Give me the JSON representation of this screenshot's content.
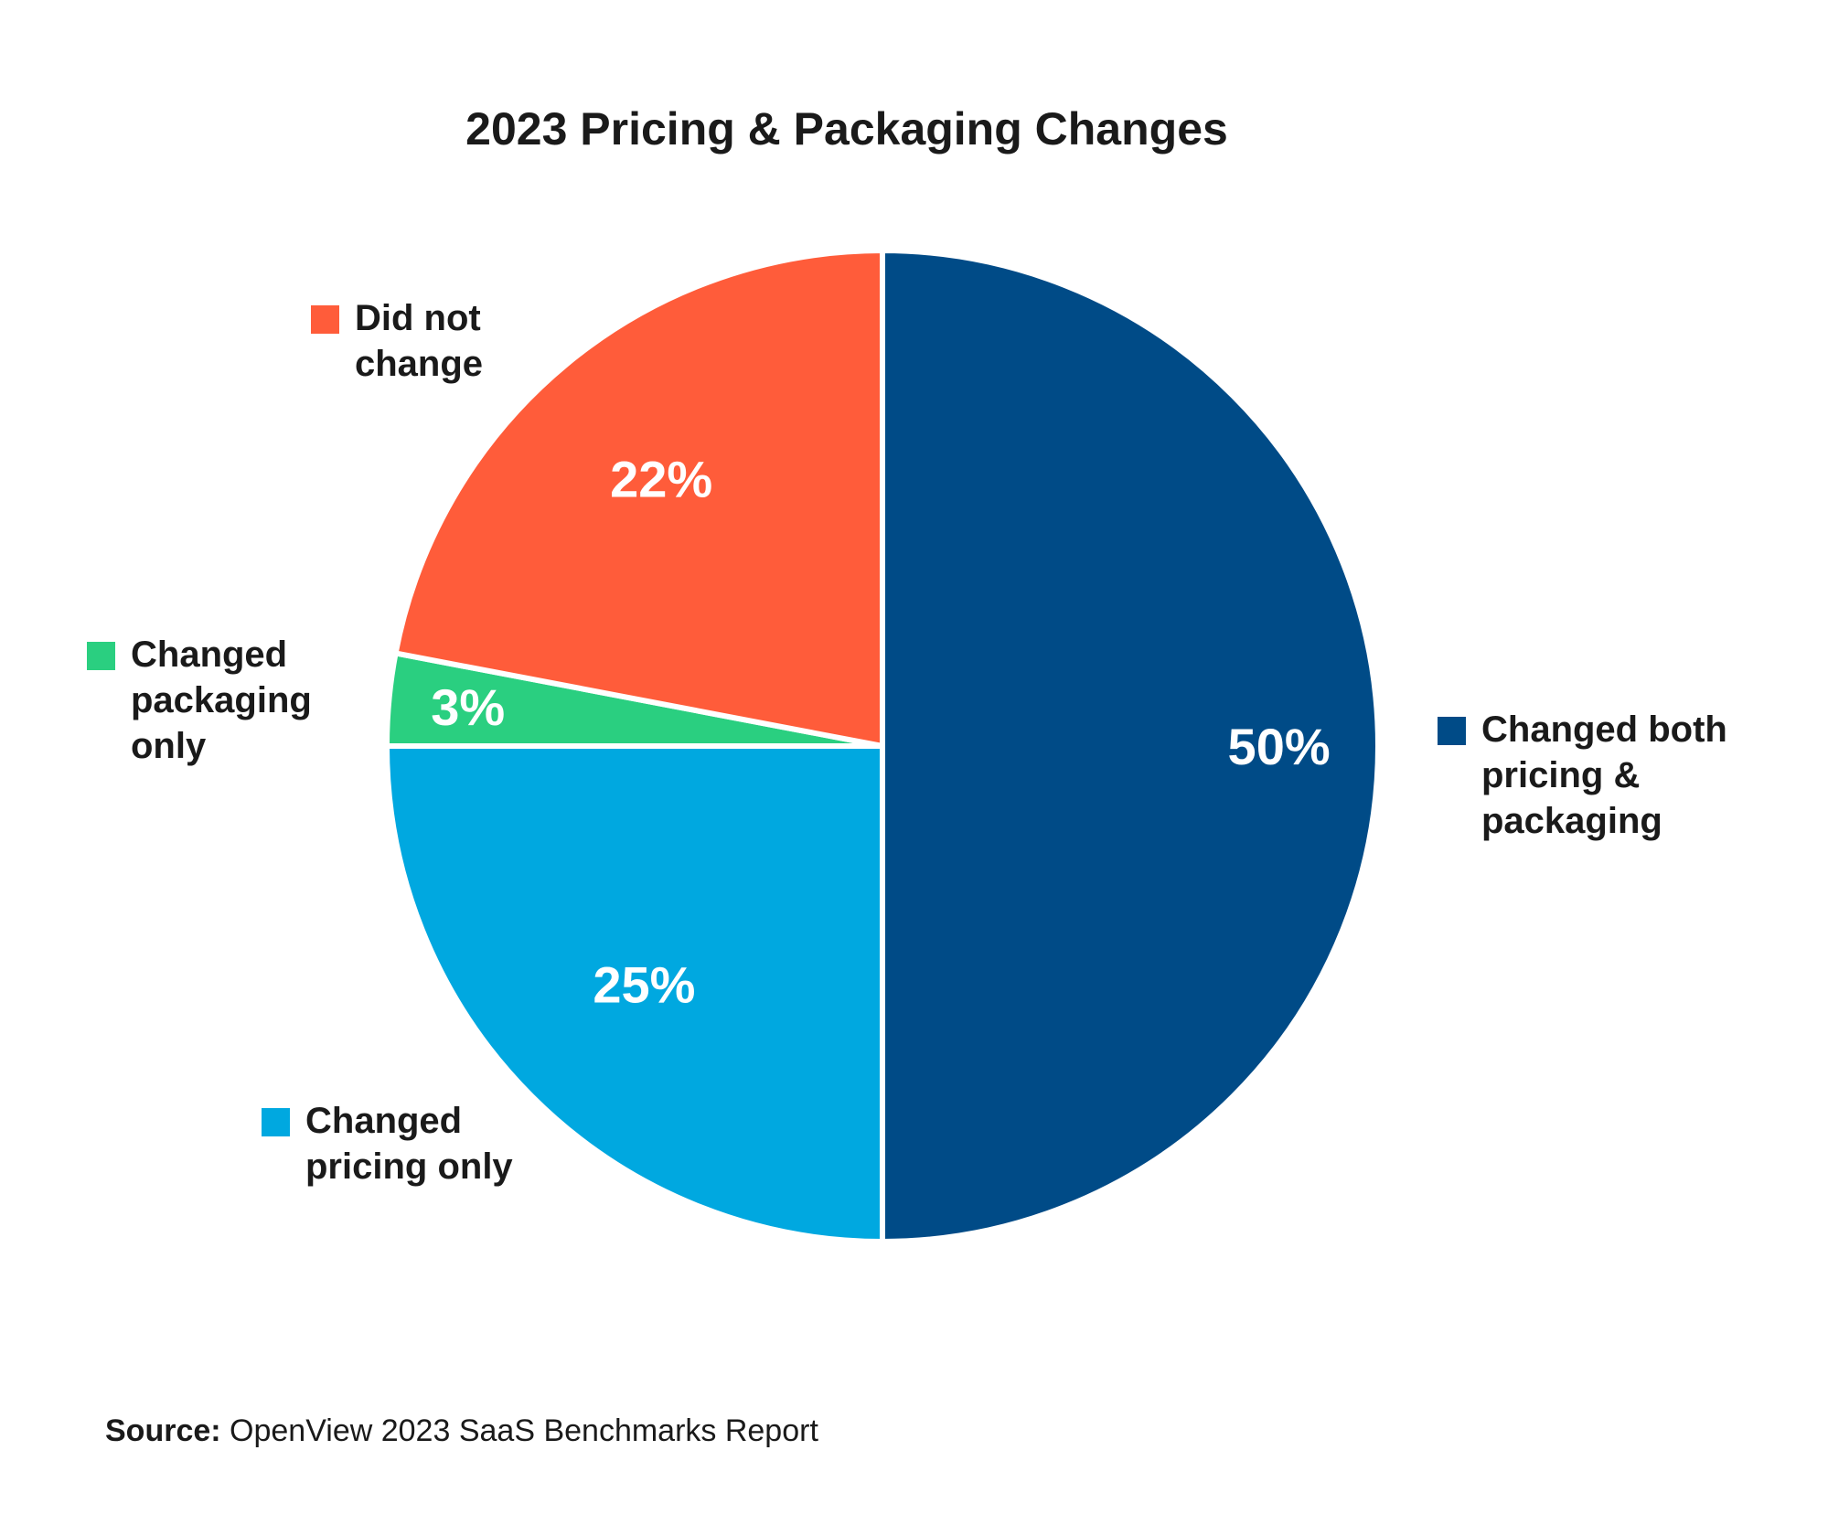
{
  "chart_data": {
    "type": "pie",
    "title": "2023 Pricing & Packaging Changes",
    "start_angle": "top",
    "direction": "clockwise",
    "legend_placement": "beside slices",
    "slices": [
      {
        "label": "Changed both pricing & packaging",
        "lines": [
          "Changed both",
          "pricing &",
          "packaging"
        ],
        "value": 50,
        "value_label": "50%",
        "color": "#004B87"
      },
      {
        "label": "Changed pricing only",
        "lines": [
          "Changed",
          "pricing only"
        ],
        "value": 25,
        "value_label": "25%",
        "color": "#00A8E0"
      },
      {
        "label": "Changed packaging only",
        "lines": [
          "Changed",
          "packaging",
          "only"
        ],
        "value": 3,
        "value_label": "3%",
        "color": "#2ACF80"
      },
      {
        "label": "Did not change",
        "lines": [
          "Did not",
          "change"
        ],
        "value": 22,
        "value_label": "22%",
        "color": "#FF5C3A"
      }
    ]
  },
  "source": {
    "label": "Source:",
    "text": " OpenView 2023 SaaS Benchmarks Report"
  }
}
